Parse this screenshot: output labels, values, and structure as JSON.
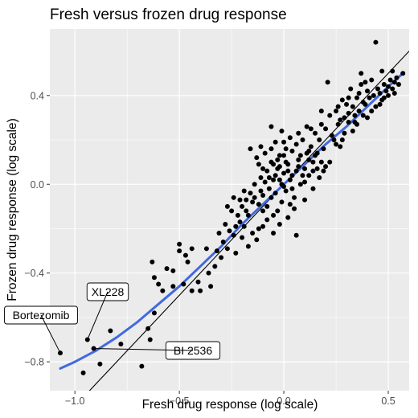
{
  "chart_data": {
    "type": "scatter",
    "title": "Fresh versus frozen drug response",
    "xlabel": "Fresh drug response (log scale)",
    "ylabel": "Frozen drug response (log scale)",
    "xlim": [
      -1.12,
      0.6
    ],
    "ylim": [
      -0.93,
      0.7
    ],
    "x_ticks": [
      -1.0,
      -0.5,
      0.0,
      0.5
    ],
    "x_tick_labels": [
      "−1.0",
      "−0.5",
      "0.0",
      "0.5"
    ],
    "y_ticks": [
      -0.8,
      -0.4,
      0.0,
      0.4
    ],
    "y_tick_labels": [
      "−0.8",
      "−0.4",
      "0.0",
      "0.4"
    ],
    "grid": true,
    "background_color": "#ebebeb",
    "point_color": "#000000",
    "identity_line": {
      "slope": 1,
      "intercept": 0,
      "color": "#000000"
    },
    "smooth_line": {
      "color": "#4169e1",
      "x": [
        -1.07,
        -1.0,
        -0.9,
        -0.8,
        -0.7,
        -0.6,
        -0.5,
        -0.4,
        -0.3,
        -0.2,
        -0.1,
        0.0,
        0.1,
        0.2,
        0.3,
        0.4,
        0.5,
        0.57
      ],
      "y": [
        -0.83,
        -0.8,
        -0.75,
        -0.69,
        -0.62,
        -0.54,
        -0.46,
        -0.37,
        -0.28,
        -0.18,
        -0.09,
        0.0,
        0.09,
        0.18,
        0.26,
        0.35,
        0.44,
        0.5
      ]
    },
    "annotations": [
      {
        "text": "Bortezomib",
        "x": -1.07,
        "y": -0.76
      },
      {
        "text": "XL228",
        "x": -0.94,
        "y": -0.7
      },
      {
        "text": "BI 2536",
        "x": -0.91,
        "y": -0.74
      }
    ],
    "points": [
      [
        -1.07,
        -0.76
      ],
      [
        -0.94,
        -0.7
      ],
      [
        -0.91,
        -0.74
      ],
      [
        -0.96,
        -0.85
      ],
      [
        -0.88,
        -0.81
      ],
      [
        -0.83,
        -0.66
      ],
      [
        -0.78,
        -0.72
      ],
      [
        -0.68,
        -0.82
      ],
      [
        -0.64,
        -0.7
      ],
      [
        -0.65,
        -0.65
      ],
      [
        -0.62,
        -0.58
      ],
      [
        -0.58,
        -0.48
      ],
      [
        -0.62,
        -0.42
      ],
      [
        -0.56,
        -0.38
      ],
      [
        -0.63,
        -0.35
      ],
      [
        -0.53,
        -0.46
      ],
      [
        -0.48,
        -0.45
      ],
      [
        -0.44,
        -0.48
      ],
      [
        -0.4,
        -0.48
      ],
      [
        -0.41,
        -0.44
      ],
      [
        -0.36,
        -0.4
      ],
      [
        -0.33,
        -0.37
      ],
      [
        -0.47,
        -0.32
      ],
      [
        -0.5,
        -0.3
      ],
      [
        -0.44,
        -0.29
      ],
      [
        -0.5,
        -0.27
      ],
      [
        -0.37,
        -0.29
      ],
      [
        -0.31,
        -0.22
      ],
      [
        -0.27,
        -0.29
      ],
      [
        -0.24,
        -0.23
      ],
      [
        -0.23,
        -0.19
      ],
      [
        -0.22,
        -0.14
      ],
      [
        -0.28,
        -0.18
      ],
      [
        -0.21,
        -0.07
      ],
      [
        -0.18,
        -0.12
      ],
      [
        -0.19,
        -0.03
      ],
      [
        -0.15,
        -0.08
      ],
      [
        -0.14,
        0.0
      ],
      [
        -0.12,
        -0.09
      ],
      [
        -0.11,
        0.03
      ],
      [
        -0.1,
        -0.05
      ],
      [
        -0.08,
        0.06
      ],
      [
        -0.07,
        -0.02
      ],
      [
        -0.06,
        0.1
      ],
      [
        -0.05,
        0.02
      ],
      [
        -0.04,
        -0.04
      ],
      [
        -0.03,
        0.07
      ],
      [
        -0.02,
        0.13
      ],
      [
        -0.01,
        0.0
      ],
      [
        0.0,
        0.05
      ],
      [
        0.01,
        -0.03
      ],
      [
        0.02,
        0.09
      ],
      [
        0.03,
        0.02
      ],
      [
        0.04,
        0.15
      ],
      [
        0.05,
        -0.06
      ],
      [
        0.06,
        0.06
      ],
      [
        0.07,
        0.11
      ],
      [
        0.08,
        0.0
      ],
      [
        0.09,
        0.2
      ],
      [
        0.1,
        0.07
      ],
      [
        0.11,
        0.14
      ],
      [
        0.12,
        0.04
      ],
      [
        0.13,
        0.17
      ],
      [
        0.14,
        0.1
      ],
      [
        0.15,
        0.23
      ],
      [
        0.16,
        0.14
      ],
      [
        0.17,
        0.2
      ],
      [
        0.18,
        0.27
      ],
      [
        0.19,
        0.16
      ],
      [
        0.2,
        0.25
      ],
      [
        0.22,
        0.31
      ],
      [
        0.23,
        0.22
      ],
      [
        0.25,
        0.33
      ],
      [
        0.26,
        0.27
      ],
      [
        0.27,
        0.29
      ],
      [
        0.28,
        0.38
      ],
      [
        0.29,
        0.3
      ],
      [
        0.3,
        0.36
      ],
      [
        0.31,
        0.32
      ],
      [
        0.32,
        0.43
      ],
      [
        0.33,
        0.35
      ],
      [
        0.34,
        0.28
      ],
      [
        0.35,
        0.39
      ],
      [
        0.36,
        0.33
      ],
      [
        0.37,
        0.45
      ],
      [
        0.38,
        0.37
      ],
      [
        0.39,
        0.36
      ],
      [
        0.4,
        0.42
      ],
      [
        0.41,
        0.39
      ],
      [
        0.42,
        0.47
      ],
      [
        0.43,
        0.4
      ],
      [
        0.44,
        0.35
      ],
      [
        0.45,
        0.43
      ],
      [
        0.46,
        0.41
      ],
      [
        0.47,
        0.38
      ],
      [
        0.48,
        0.45
      ],
      [
        0.49,
        0.42
      ],
      [
        0.5,
        0.44
      ],
      [
        0.51,
        0.47
      ],
      [
        0.52,
        0.43
      ],
      [
        0.53,
        0.46
      ],
      [
        0.54,
        0.48
      ],
      [
        0.55,
        0.45
      ],
      [
        0.57,
        0.5
      ],
      [
        0.44,
        0.64
      ],
      [
        0.21,
        0.46
      ],
      [
        0.37,
        0.5
      ],
      [
        0.31,
        0.39
      ],
      [
        0.26,
        0.35
      ],
      [
        0.18,
        0.33
      ],
      [
        0.13,
        0.25
      ],
      [
        0.11,
        0.26
      ],
      [
        0.03,
        0.21
      ],
      [
        0.0,
        0.13
      ],
      [
        -0.06,
        0.16
      ],
      [
        -0.09,
        0.14
      ],
      [
        -0.13,
        0.12
      ],
      [
        -0.16,
        0.16
      ],
      [
        -0.11,
        0.17
      ],
      [
        -0.04,
        0.19
      ],
      [
        0.0,
        0.19
      ],
      [
        0.06,
        0.18
      ],
      [
        0.14,
        -0.02
      ],
      [
        0.16,
        0.07
      ],
      [
        0.2,
        0.08
      ],
      [
        0.22,
        0.1
      ],
      [
        0.1,
        -0.07
      ],
      [
        0.05,
        -0.11
      ],
      [
        0.02,
        -0.15
      ],
      [
        -0.02,
        -0.18
      ],
      [
        -0.05,
        -0.14
      ],
      [
        -0.08,
        -0.16
      ],
      [
        -0.1,
        -0.12
      ],
      [
        -0.12,
        -0.2
      ],
      [
        -0.15,
        -0.22
      ],
      [
        -0.13,
        -0.25
      ],
      [
        -0.17,
        -0.14
      ],
      [
        -0.2,
        -0.1
      ],
      [
        -0.24,
        -0.06
      ],
      [
        -0.25,
        -0.12
      ],
      [
        -0.27,
        -0.1
      ],
      [
        -0.05,
        -0.22
      ],
      [
        0.06,
        -0.23
      ],
      [
        0.03,
        -0.09
      ],
      [
        -0.08,
        -0.1
      ],
      [
        -0.03,
        0.11
      ],
      [
        0.01,
        0.1
      ],
      [
        0.04,
        0.04
      ],
      [
        -0.01,
        -0.08
      ],
      [
        0.08,
        0.13
      ],
      [
        -0.16,
        -0.04
      ],
      [
        -0.18,
        -0.07
      ],
      [
        -0.21,
        -0.17
      ],
      [
        -0.1,
        0.07
      ],
      [
        0.12,
        0.11
      ],
      [
        0.15,
        0.13
      ],
      [
        0.19,
        0.06
      ],
      [
        0.24,
        0.2
      ],
      [
        0.27,
        0.17
      ],
      [
        0.29,
        0.23
      ],
      [
        0.33,
        0.24
      ],
      [
        0.35,
        0.27
      ],
      [
        0.38,
        0.31
      ],
      [
        0.4,
        0.3
      ],
      [
        0.42,
        0.33
      ],
      [
        0.46,
        0.36
      ],
      [
        0.48,
        0.39
      ],
      [
        0.5,
        0.4
      ],
      [
        0.52,
        0.51
      ],
      [
        0.53,
        0.41
      ],
      [
        0.47,
        0.51
      ],
      [
        0.39,
        0.46
      ],
      [
        0.36,
        0.41
      ],
      [
        0.25,
        0.18
      ],
      [
        0.17,
        0.03
      ],
      [
        -0.06,
        0.26
      ],
      [
        -0.01,
        0.24
      ],
      [
        0.07,
        0.23
      ],
      [
        -0.12,
        0.09
      ],
      [
        -0.07,
        0.03
      ],
      [
        -0.02,
        0.08
      ],
      [
        0.0,
        -0.01
      ],
      [
        0.02,
        0.06
      ],
      [
        -0.04,
        0.04
      ],
      [
        -0.09,
        0.01
      ],
      [
        -0.14,
        -0.06
      ],
      [
        -0.11,
        -0.03
      ],
      [
        -0.06,
        -0.06
      ],
      [
        0.04,
        -0.02
      ],
      [
        0.09,
        0.04
      ],
      [
        0.12,
        0.15
      ],
      [
        0.07,
        0.08
      ],
      [
        -0.02,
        0.02
      ],
      [
        -0.05,
        0.09
      ],
      [
        0.01,
        0.16
      ],
      [
        -0.2,
        -0.24
      ],
      [
        -0.17,
        -0.28
      ],
      [
        -0.29,
        -0.26
      ],
      [
        -0.32,
        -0.3
      ],
      [
        -0.23,
        -0.31
      ],
      [
        -0.46,
        -0.35
      ],
      [
        -0.53,
        -0.39
      ],
      [
        -0.6,
        -0.45
      ],
      [
        -0.35,
        -0.46
      ],
      [
        -0.3,
        -0.33
      ],
      [
        -0.26,
        -0.21
      ],
      [
        -0.19,
        -0.19
      ],
      [
        -0.1,
        -0.19
      ],
      [
        -0.03,
        -0.12
      ],
      [
        0.1,
        0.01
      ],
      [
        0.14,
        0.06
      ],
      [
        0.18,
        0.1
      ],
      [
        0.28,
        0.2
      ],
      [
        0.31,
        0.28
      ],
      [
        0.34,
        0.31
      ]
    ]
  }
}
